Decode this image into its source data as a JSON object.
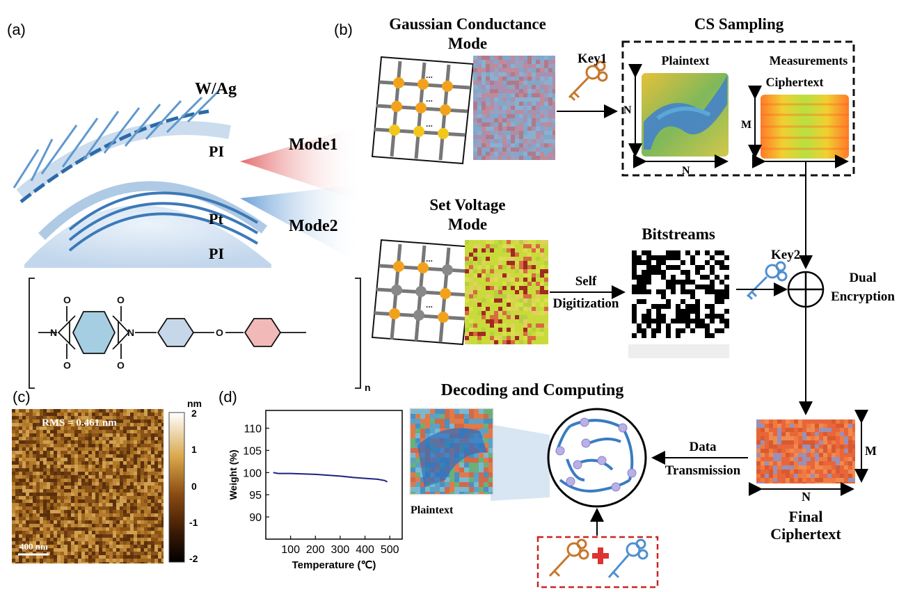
{
  "panels": {
    "a": {
      "label": "(a)",
      "layers": [
        "W/Ag",
        "PI",
        "Pt",
        "PI"
      ],
      "polymer_repeat": "n",
      "atoms": {
        "o": "O",
        "n": "N"
      }
    },
    "b": {
      "label": "(b)",
      "mode1": "Mode1",
      "mode2": "Mode2",
      "gaussian_title": [
        "Gaussian Conductance",
        "Mode"
      ],
      "cs_sampling": "CS Sampling",
      "key1": "Key1",
      "plaintext": "Plaintext",
      "measurements": "Measurements",
      "ciphertext": "Ciphertext",
      "n": "N",
      "m": "M",
      "setvoltage_title": [
        "Set Voltage",
        "Mode"
      ],
      "self_digitization": [
        "Self",
        "Digitization"
      ],
      "bitstreams": "Bitstreams",
      "key2": "Key2",
      "dual_encryption": [
        "Dual",
        "Encryption"
      ],
      "ellipsis": "..."
    },
    "c": {
      "label": "(c)",
      "rms": "RMS = 0.461 nm",
      "scalebar": "400 nm",
      "colorbar_unit": "nm",
      "colorbar_ticks": [
        "2",
        "1",
        "0",
        "-1",
        "-2"
      ]
    },
    "d": {
      "label": "(d)"
    },
    "decode": {
      "title": "Decoding and Computing",
      "plaintext": "Plaintext",
      "data_transmission": [
        "Data",
        "Transmission"
      ],
      "final_ciphertext": [
        "Final",
        "Ciphertext"
      ],
      "n": "N",
      "m": "M"
    }
  },
  "chart_data": {
    "type": "line",
    "xlabel": "Temperature (℃)",
    "ylabel": "Weight (%)",
    "xlim": [
      0,
      550
    ],
    "ylim": [
      85,
      114
    ],
    "xticks": [
      100,
      200,
      300,
      400,
      500
    ],
    "yticks": [
      90,
      95,
      100,
      105,
      110
    ],
    "grid": false,
    "series": [
      {
        "color": "#1a237e",
        "x": [
          30,
          50,
          100,
          150,
          200,
          250,
          300,
          350,
          400,
          450,
          480,
          490
        ],
        "y": [
          100.0,
          99.8,
          99.8,
          99.7,
          99.6,
          99.4,
          99.2,
          98.9,
          98.7,
          98.5,
          98.2,
          97.9
        ]
      }
    ]
  },
  "colors": {
    "accent_red": "#e05050",
    "accent_blue": "#4f8fd0",
    "curve": "#1a237e",
    "dashed_red": "#cc2222"
  }
}
